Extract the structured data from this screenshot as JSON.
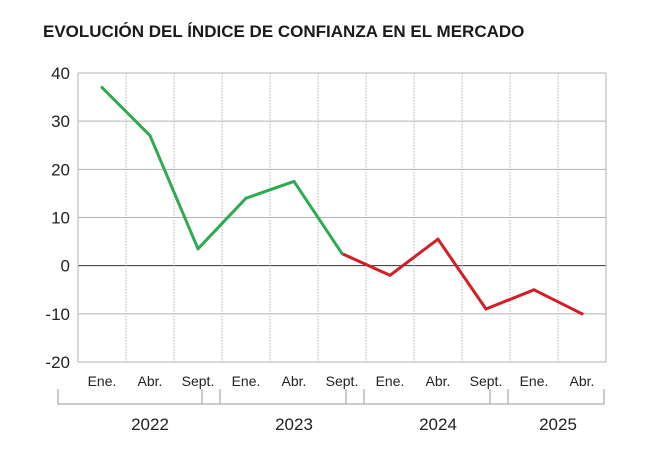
{
  "title": "EVOLUCIÓN DEL ÍNDICE DE CONFIANZA EN EL MERCADO",
  "colors": {
    "positive_segment": "#2eaa4f",
    "negative_segment": "#d21f26",
    "grid": "#b3b3b3",
    "zero_line": "#333333"
  },
  "chart_data": {
    "type": "line",
    "title": "EVOLUCIÓN DEL ÍNDICE DE CONFIANZA EN EL MERCADO",
    "xlabel": "",
    "ylabel": "",
    "ylim": [
      -20,
      40
    ],
    "yticks": [
      40,
      30,
      20,
      10,
      0,
      -10,
      -20
    ],
    "grid": true,
    "categories": [
      "Ene.",
      "Abr.",
      "Sept.",
      "Ene.",
      "Abr.",
      "Sept.",
      "Ene.",
      "Abr.",
      "Sept.",
      "Ene.",
      "Abr."
    ],
    "groups": [
      {
        "label": "2022",
        "start": 0,
        "end": 2
      },
      {
        "label": "2023",
        "start": 3,
        "end": 5
      },
      {
        "label": "2024",
        "start": 6,
        "end": 8
      },
      {
        "label": "2025",
        "start": 9,
        "end": 10
      }
    ],
    "values": [
      37,
      27,
      3.5,
      14,
      17.5,
      2.5,
      -2,
      5.5,
      -9,
      -5,
      -10
    ],
    "color_change_index": 5
  }
}
